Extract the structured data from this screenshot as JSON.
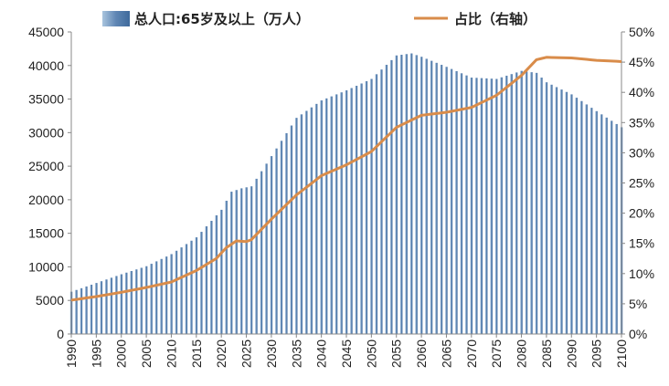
{
  "chart_data": {
    "type": "bar+line",
    "title": "",
    "legend": [
      {
        "label": "总人口:65岁及以上（万人）",
        "kind": "bar",
        "color": "#7fa3c8"
      },
      {
        "label": "占比（右轴）",
        "kind": "line",
        "color": "#d98c4a"
      }
    ],
    "legend_position": "top",
    "x": {
      "start": 1990,
      "end": 2100,
      "tick_labels": [
        "1990",
        "1995",
        "2000",
        "2005",
        "2010",
        "2015",
        "2020",
        "2025",
        "2030",
        "2035",
        "2040",
        "2045",
        "2050",
        "2055",
        "2060",
        "2065",
        "2070",
        "2075",
        "2080",
        "2085",
        "2090",
        "2095",
        "2100"
      ]
    },
    "y_left": {
      "range": [
        0,
        45000
      ],
      "tick_labels": [
        "0",
        "5000",
        "10000",
        "15000",
        "20000",
        "25000",
        "30000",
        "35000",
        "40000",
        "45000"
      ]
    },
    "y_right": {
      "range": [
        0,
        50
      ],
      "tick_labels": [
        "0%",
        "5%",
        "10%",
        "15%",
        "20%",
        "25%",
        "30%",
        "35%",
        "40%",
        "45%",
        "50%"
      ]
    },
    "bar_anchors": [
      [
        1990,
        6300
      ],
      [
        1995,
        7600
      ],
      [
        2000,
        8900
      ],
      [
        2005,
        10100
      ],
      [
        2010,
        11900
      ],
      [
        2015,
        14400
      ],
      [
        2020,
        18500
      ],
      [
        2022,
        21200
      ],
      [
        2024,
        21700
      ],
      [
        2026,
        22000
      ],
      [
        2030,
        26500
      ],
      [
        2035,
        32200
      ],
      [
        2040,
        34800
      ],
      [
        2045,
        36300
      ],
      [
        2050,
        38000
      ],
      [
        2055,
        41500
      ],
      [
        2058,
        41800
      ],
      [
        2060,
        41300
      ],
      [
        2065,
        39800
      ],
      [
        2070,
        38200
      ],
      [
        2075,
        38000
      ],
      [
        2080,
        39200
      ],
      [
        2083,
        38900
      ],
      [
        2085,
        37500
      ],
      [
        2090,
        35700
      ],
      [
        2095,
        33200
      ],
      [
        2100,
        30800
      ]
    ],
    "line_anchors": [
      [
        1990,
        5.6
      ],
      [
        1995,
        6.2
      ],
      [
        2000,
        6.9
      ],
      [
        2005,
        7.7
      ],
      [
        2010,
        8.6
      ],
      [
        2015,
        10.5
      ],
      [
        2019,
        12.5
      ],
      [
        2021,
        14.3
      ],
      [
        2023,
        15.4
      ],
      [
        2025,
        15.3
      ],
      [
        2026,
        15.6
      ],
      [
        2030,
        19.0
      ],
      [
        2035,
        23.0
      ],
      [
        2040,
        26.2
      ],
      [
        2045,
        28.0
      ],
      [
        2050,
        30.2
      ],
      [
        2055,
        34.2
      ],
      [
        2060,
        36.2
      ],
      [
        2065,
        36.7
      ],
      [
        2070,
        37.5
      ],
      [
        2075,
        39.5
      ],
      [
        2080,
        42.8
      ],
      [
        2083,
        45.4
      ],
      [
        2085,
        45.8
      ],
      [
        2090,
        45.7
      ],
      [
        2095,
        45.3
      ],
      [
        2100,
        45.1
      ]
    ]
  }
}
